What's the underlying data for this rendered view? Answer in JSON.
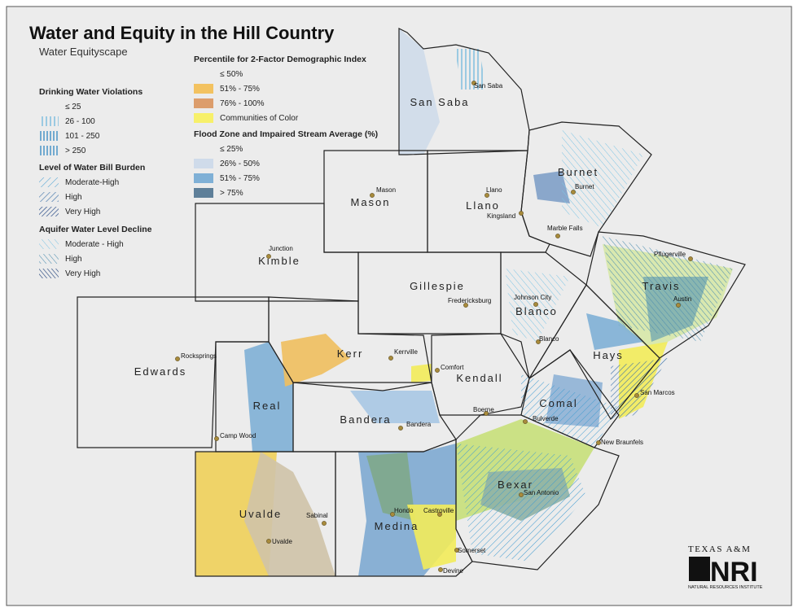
{
  "title": "Water and Equity in the Hill Country",
  "subtitle": "Water Equityscape",
  "legend": {
    "left": [
      {
        "heading": "Drinking Water Violations",
        "items": [
          "≤ 25",
          "26 - 100",
          "101 - 250",
          "> 250"
        ]
      },
      {
        "heading": "Level of Water Bill Burden",
        "items": [
          "Moderate-High",
          "High",
          "Very High"
        ]
      },
      {
        "heading": "Aquifer Water Level Decline",
        "items": [
          "Moderate - High",
          "High",
          "Very High"
        ]
      }
    ],
    "right": [
      {
        "heading": "Percentile for 2-Factor Demographic Index",
        "items": [
          "≤ 50%",
          "51% - 75%",
          "76% - 100%",
          "Communities of Color"
        ]
      },
      {
        "heading": "Flood Zone and Impaired Stream Average (%)",
        "items": [
          "≤ 25%",
          "26% - 50%",
          "51% - 75%",
          "> 75%"
        ]
      }
    ]
  },
  "counties": [
    "San Saba",
    "Burnet",
    "Mason",
    "Llano",
    "Kimble",
    "Gillespie",
    "Blanco",
    "Travis",
    "Edwards",
    "Kerr",
    "Kendall",
    "Hays",
    "Real",
    "Comal",
    "Bandera",
    "Bexar",
    "Uvalde",
    "Medina"
  ],
  "cities": [
    "San Saba",
    "Mason",
    "Llano",
    "Burnet",
    "Kingsland",
    "Marble Falls",
    "Junction",
    "Pflugerville",
    "Austin",
    "Johnson City",
    "Fredericksburg",
    "Blanco",
    "Rocksprings",
    "Kerrville",
    "Comfort",
    "San Marcos",
    "Boerne",
    "Bulverde",
    "Bandera",
    "New Braunfels",
    "Camp Wood",
    "San Antonio",
    "Sabinal",
    "Hondo",
    "Castroville",
    "Uvalde",
    "Somerset",
    "Devine"
  ],
  "logo": {
    "top": "TEXAS A&M",
    "mark": "NRI",
    "bottom": "NATURAL RESOURCES INSTITUTE"
  }
}
